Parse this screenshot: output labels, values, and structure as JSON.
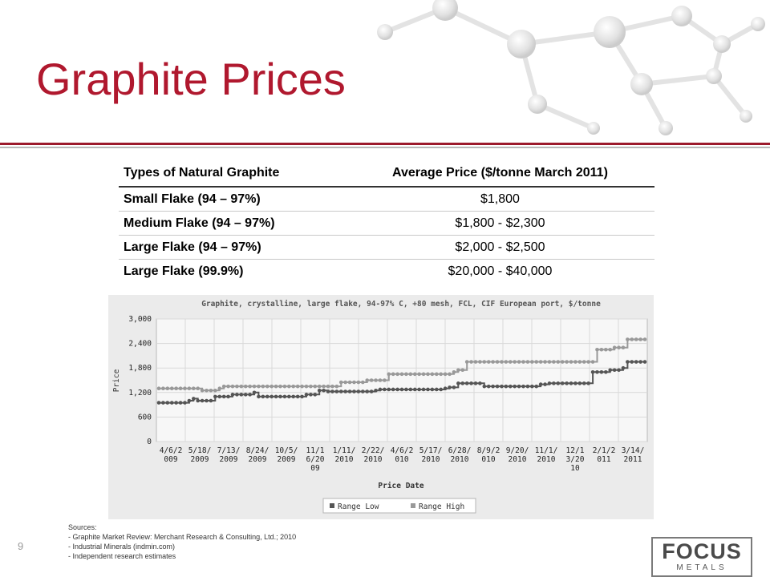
{
  "slide": {
    "title": "Graphite Prices",
    "page_number": "9"
  },
  "table": {
    "headers": [
      "Types of Natural Graphite",
      "Average Price ($/tonne March 2011)"
    ],
    "rows": [
      {
        "type": "Small Flake (94 – 97%)",
        "price": "$1,800"
      },
      {
        "type": "Medium Flake (94 – 97%)",
        "price": "$1,800 - $2,300"
      },
      {
        "type": "Large Flake (94 – 97%)",
        "price": "$2,000 - $2,500"
      },
      {
        "type": "Large Flake (99.9%)",
        "price": "$20,000 - $40,000"
      }
    ]
  },
  "chart_data": {
    "type": "line",
    "title": "Graphite, crystalline, large flake, 94-97% C, +80 mesh, FCL, CIF European port, $/tonne",
    "xlabel": "Price Date",
    "ylabel": "Price",
    "ylim": [
      0,
      3000
    ],
    "yticks": [
      "0",
      "600",
      "1,200",
      "1,800",
      "2,400",
      "3,000"
    ],
    "ytick_values": [
      0,
      600,
      1200,
      1800,
      2400,
      3000
    ],
    "xtick_labels": [
      "4/6/2\n009",
      "5/18/\n2009",
      "7/13/\n2009",
      "8/24/\n2009",
      "10/5/\n2009",
      "11/1\n6/20\n09",
      "1/11/\n2010",
      "2/22/\n2010",
      "4/6/2\n010",
      "5/17/\n2010",
      "6/28/\n2010",
      "8/9/2\n010",
      "9/20/\n2010",
      "11/1/\n2010",
      "12/1\n3/20\n10",
      "2/1/2\n011",
      "3/14/\n2011"
    ],
    "legend_position": "bottom-right",
    "grid": true,
    "series": [
      {
        "name": "Range Low",
        "color": "#555555",
        "values": [
          950,
          950,
          950,
          950,
          950,
          950,
          950,
          1000,
          1050,
          1000,
          1000,
          1000,
          1000,
          1100,
          1100,
          1100,
          1100,
          1150,
          1150,
          1150,
          1150,
          1150,
          1200,
          1100,
          1100,
          1100,
          1100,
          1100,
          1100,
          1100,
          1100,
          1100,
          1100,
          1100,
          1150,
          1150,
          1150,
          1250,
          1250,
          1225,
          1225,
          1225,
          1225,
          1225,
          1225,
          1225,
          1225,
          1225,
          1225,
          1225,
          1250,
          1275,
          1275,
          1275,
          1275,
          1275,
          1275,
          1275,
          1275,
          1275,
          1275,
          1275,
          1275,
          1275,
          1275,
          1275,
          1300,
          1325,
          1325,
          1425,
          1425,
          1425,
          1425,
          1425,
          1425,
          1350,
          1350,
          1350,
          1350,
          1350,
          1350,
          1350,
          1350,
          1350,
          1350,
          1350,
          1350,
          1350,
          1400,
          1400,
          1425,
          1425,
          1425,
          1425,
          1425,
          1425,
          1425,
          1425,
          1425,
          1425,
          1700,
          1700,
          1700,
          1700,
          1750,
          1750,
          1750,
          1800,
          1950,
          1950,
          1950,
          1950,
          1950
        ]
      },
      {
        "name": "Range High",
        "color": "#999999",
        "values": [
          1300,
          1300,
          1300,
          1300,
          1300,
          1300,
          1300,
          1300,
          1300,
          1300,
          1250,
          1250,
          1250,
          1250,
          1300,
          1350,
          1350,
          1350,
          1350,
          1350,
          1350,
          1350,
          1350,
          1350,
          1350,
          1350,
          1350,
          1350,
          1350,
          1350,
          1350,
          1350,
          1350,
          1350,
          1350,
          1350,
          1350,
          1350,
          1350,
          1350,
          1350,
          1350,
          1450,
          1450,
          1450,
          1450,
          1450,
          1450,
          1500,
          1500,
          1500,
          1500,
          1500,
          1650,
          1650,
          1650,
          1650,
          1650,
          1650,
          1650,
          1650,
          1650,
          1650,
          1650,
          1650,
          1650,
          1650,
          1650,
          1700,
          1750,
          1750,
          1950,
          1950,
          1950,
          1950,
          1950,
          1950,
          1950,
          1950,
          1950,
          1950,
          1950,
          1950,
          1950,
          1950,
          1950,
          1950,
          1950,
          1950,
          1950,
          1950,
          1950,
          1950,
          1950,
          1950,
          1950,
          1950,
          1950,
          1950,
          1950,
          1950,
          2250,
          2250,
          2250,
          2250,
          2300,
          2300,
          2300,
          2500,
          2500,
          2500,
          2500,
          2500
        ]
      }
    ]
  },
  "sources": {
    "heading": "Sources:",
    "items": [
      "- Graphite Market Review: Merchant Research & Consulting, Ltd.; 2010",
      "- Industrial Minerals (indmin.com)",
      "- Independent research estimates"
    ]
  },
  "logo": {
    "text_top": "FOCUS",
    "text_bottom": "METALS"
  }
}
